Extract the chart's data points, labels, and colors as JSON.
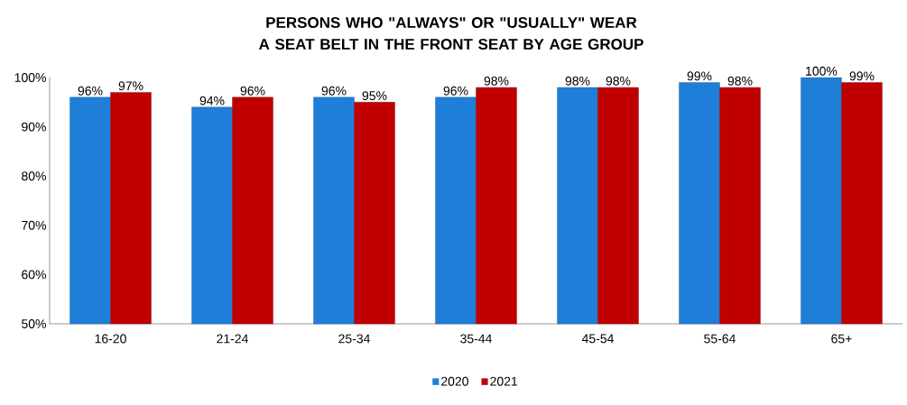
{
  "chart_data": {
    "type": "bar",
    "title": "PERSONS WHO \"ALWAYS\" OR \"USUALLY\" WEAR A SEAT BELT IN THE FRONT SEAT BY AGE GROUP",
    "categories": [
      "16-20",
      "21-24",
      "25-34",
      "35-44",
      "45-54",
      "55-64",
      "65+"
    ],
    "series": [
      {
        "name": "2020",
        "color": "#1f7fd8",
        "values": [
          96,
          94,
          96,
          96,
          98,
          99,
          100
        ],
        "value_labels": [
          "96%",
          "94%",
          "96%",
          "96%",
          "98%",
          "99%",
          "100%"
        ]
      },
      {
        "name": "2021",
        "color": "#c00000",
        "values": [
          97,
          96,
          95,
          98,
          98,
          98,
          99
        ],
        "value_labels": [
          "97%",
          "96%",
          "95%",
          "98%",
          "98%",
          "98%",
          "99%"
        ]
      }
    ],
    "ylim": [
      50,
      100
    ],
    "yticks": [
      {
        "value": 50,
        "label": "50%"
      },
      {
        "value": 60,
        "label": "60%"
      },
      {
        "value": 70,
        "label": "70%"
      },
      {
        "value": 80,
        "label": "80%"
      },
      {
        "value": 90,
        "label": "90%"
      },
      {
        "value": 100,
        "label": "100%"
      }
    ],
    "legend": "bottom"
  }
}
